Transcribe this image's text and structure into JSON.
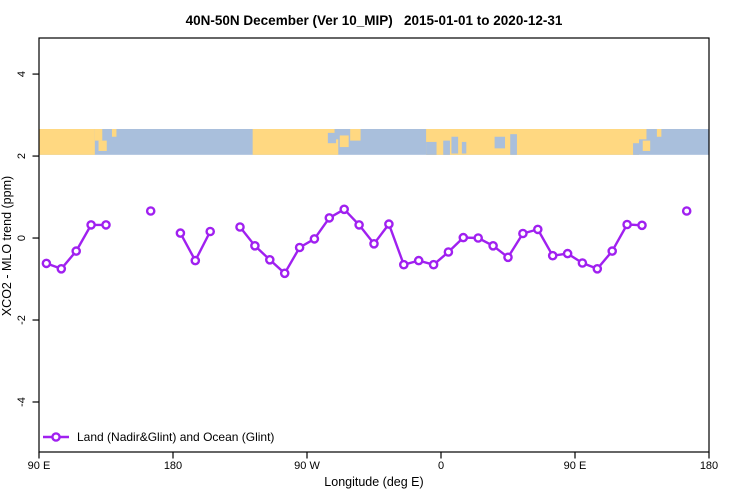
{
  "chart_data": {
    "type": "line",
    "title": "40N-50N December (Ver 10_MIP)   2015-01-01 to 2020-12-31",
    "xlabel": "Longitude (deg E)",
    "ylabel": "XCO2 - MLO trend (ppm)",
    "xlim": [
      90,
      540
    ],
    "ylim": [
      -5.22,
      4.88
    ],
    "grid": false,
    "x_ticks": [
      {
        "value": 90,
        "label": "90 E"
      },
      {
        "value": 180,
        "label": "180"
      },
      {
        "value": 270,
        "label": "90 W"
      },
      {
        "value": 360,
        "label": "0"
      },
      {
        "value": 450,
        "label": "90 E"
      },
      {
        "value": 540,
        "label": "180"
      }
    ],
    "y_ticks": [
      {
        "value": 4,
        "label": "4"
      },
      {
        "value": 2,
        "label": "2"
      },
      {
        "value": 0,
        "label": "0"
      },
      {
        "value": -2,
        "label": "-2"
      },
      {
        "value": -4,
        "label": "-4"
      }
    ],
    "series": [
      {
        "name": "Land (Nadir&Glint) and Ocean (Glint)",
        "color": "#A020F0",
        "marker": "open-circle",
        "segments": [
          [
            [
              95,
              -0.62
            ],
            [
              105,
              -0.75
            ],
            [
              115,
              -0.32
            ],
            [
              125,
              0.32
            ],
            [
              135,
              0.32
            ]
          ],
          [
            [
              165,
              0.66
            ]
          ],
          [
            [
              185,
              0.12
            ],
            [
              195,
              -0.55
            ],
            [
              205,
              0.16
            ]
          ],
          [
            [
              225,
              0.27
            ],
            [
              235,
              -0.19
            ],
            [
              245,
              -0.53
            ],
            [
              255,
              -0.86
            ],
            [
              265,
              -0.23
            ],
            [
              275,
              -0.02
            ],
            [
              285,
              0.49
            ],
            [
              295,
              0.7
            ],
            [
              305,
              0.32
            ],
            [
              315,
              -0.14
            ],
            [
              325,
              0.34
            ],
            [
              335,
              -0.65
            ],
            [
              345,
              -0.55
            ],
            [
              355,
              -0.65
            ],
            [
              365,
              -0.34
            ],
            [
              375,
              0.01
            ],
            [
              385,
              0.0
            ],
            [
              395,
              -0.19
            ],
            [
              405,
              -0.47
            ],
            [
              415,
              0.11
            ],
            [
              425,
              0.21
            ],
            [
              435,
              -0.43
            ],
            [
              445,
              -0.38
            ],
            [
              455,
              -0.61
            ],
            [
              465,
              -0.75
            ],
            [
              475,
              -0.32
            ],
            [
              485,
              0.33
            ],
            [
              495,
              0.31
            ]
          ],
          [
            [
              525,
              0.66
            ]
          ]
        ]
      }
    ],
    "legend": {
      "position": "bottom-left",
      "entries": [
        "Land (Nadir&Glint) and Ocean (Glint)"
      ]
    },
    "map_band": {
      "description": "40N-50N land/ocean strip",
      "land_color": "#FFD881",
      "ocean_color": "#A9BFDC",
      "y_range": [
        2.03,
        2.66
      ],
      "land_segments": [
        [
          90,
          127.5
        ],
        [
          233.5,
          291
        ],
        [
          350,
          493
        ]
      ],
      "ocean_patches": [
        [
          284,
          289.5,
          0.15,
          0.55
        ],
        [
          288.5,
          292.5,
          0.0,
          0.4
        ],
        [
          350,
          357,
          0.5,
          1.0
        ],
        [
          361.5,
          366,
          0.45,
          1.0
        ],
        [
          367,
          371.5,
          0.3,
          0.95
        ],
        [
          374,
          377,
          0.5,
          0.95
        ],
        [
          396,
          403,
          0.3,
          0.75
        ],
        [
          406.5,
          411,
          0.2,
          1.0
        ],
        [
          489,
          493,
          0.55,
          1.0
        ]
      ],
      "land_patches": [
        [
          127.5,
          132.5,
          0.0,
          0.45
        ],
        [
          130,
          135.5,
          0.45,
          0.85
        ],
        [
          139,
          142,
          0.0,
          0.3
        ],
        [
          292,
          298,
          0.25,
          0.7
        ],
        [
          299,
          306,
          0.0,
          0.45
        ],
        [
          493,
          498,
          0.0,
          0.4
        ],
        [
          495.5,
          500.5,
          0.45,
          0.85
        ],
        [
          505,
          508,
          0.0,
          0.3
        ]
      ]
    }
  }
}
